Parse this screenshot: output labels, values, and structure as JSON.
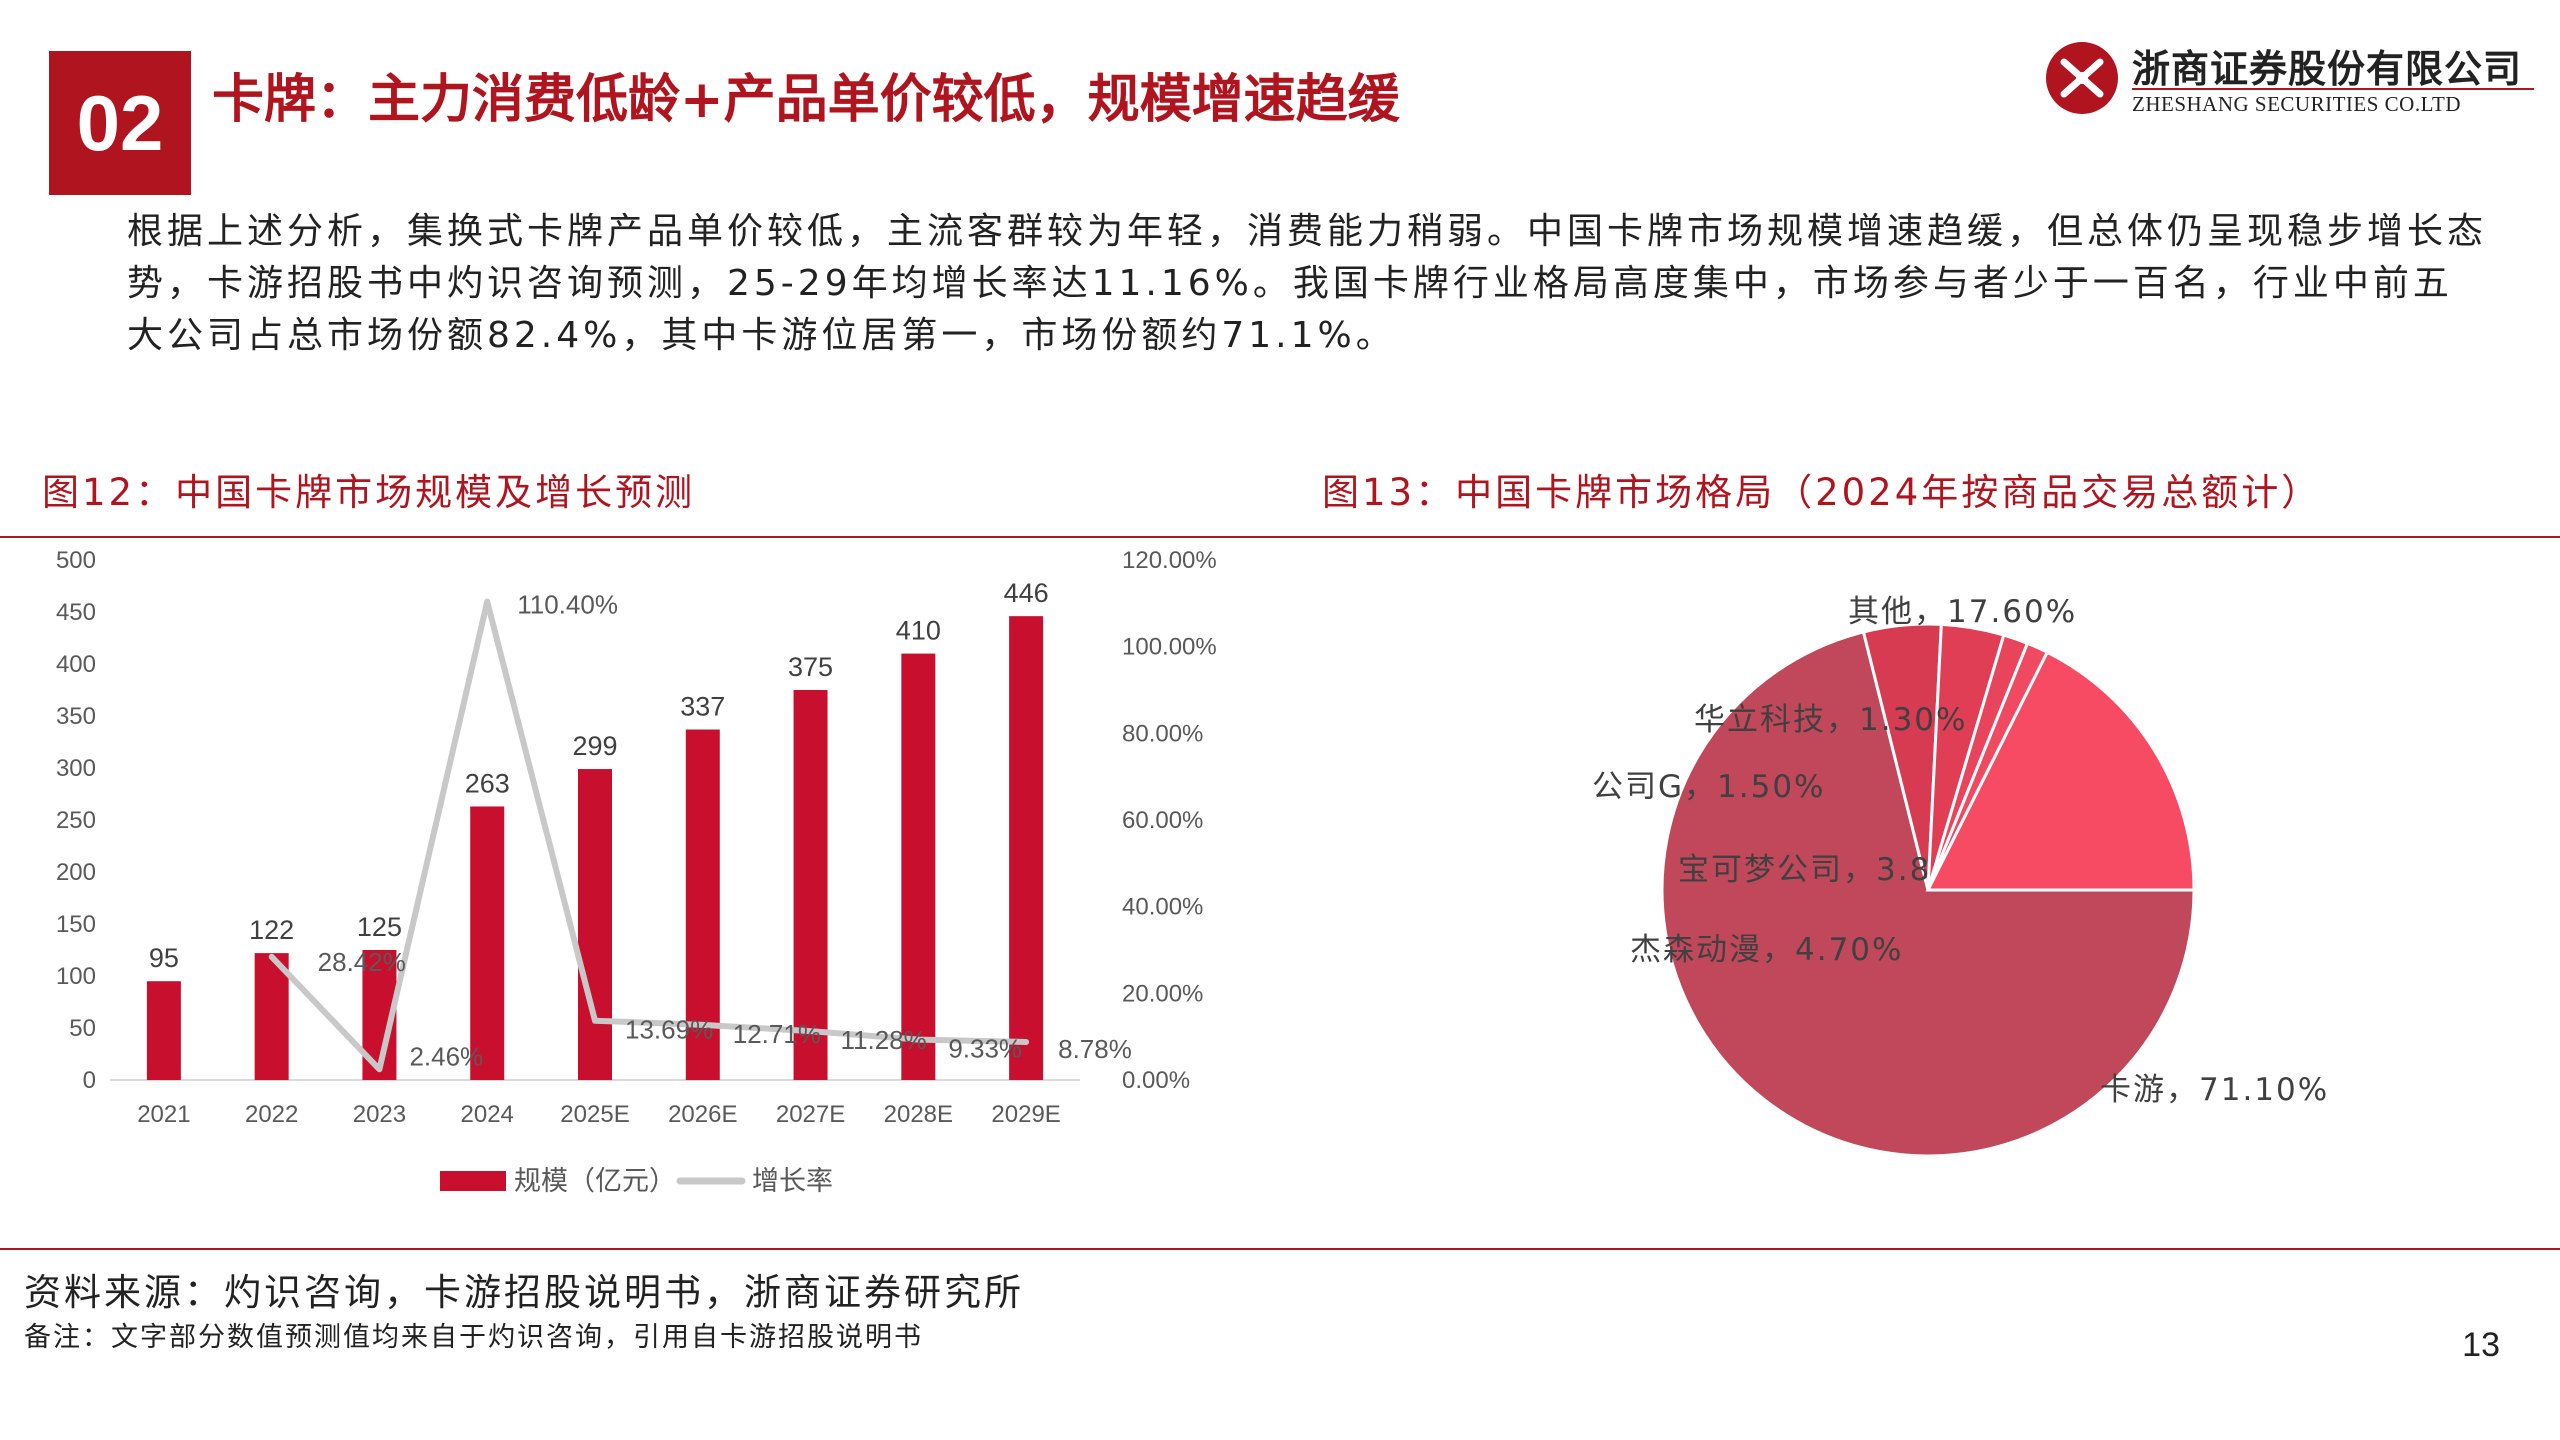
{
  "header": {
    "section_number": "02",
    "title": "卡牌：主力消费低龄+产品单价较低，规模增速趋缓",
    "logo_cn": "浙商证券股份有限公司",
    "logo_en": "ZHESHANG SECURITIES CO.LTD"
  },
  "intro_text": "根据上述分析，集换式卡牌产品单价较低，主流客群较为年轻，消费能力稍弱。中国卡牌市场规模增速趋缓，但总体仍呈现稳步增长态势，卡游招股书中灼识咨询预测，25-29年均增长率达11.16%。我国卡牌行业格局高度集中，市场参与者少于一百名，行业中前五大公司占总市场份额82.4%，其中卡游位居第一，市场份额约71.1%。",
  "figures": {
    "left_title": "图12：中国卡牌市场规模及增长预测",
    "right_title": "图13：中国卡牌市场格局（2024年按商品交易总额计）"
  },
  "chart_data": [
    {
      "type": "bar",
      "title": "图12：中国卡牌市场规模及增长预测",
      "categories": [
        "2021",
        "2022",
        "2023",
        "2024",
        "2025E",
        "2026E",
        "2027E",
        "2028E",
        "2029E"
      ],
      "series": [
        {
          "name": "规模（亿元）",
          "type": "bar",
          "axis": "left",
          "color": "#c8102e",
          "values": [
            95,
            122,
            125,
            263,
            299,
            337,
            375,
            410,
            446
          ],
          "labels": [
            "95",
            "122",
            "125",
            "263",
            "299",
            "337",
            "375",
            "410",
            "446"
          ]
        },
        {
          "name": "增长率",
          "type": "line",
          "axis": "right",
          "color": "#c8c8c8",
          "values": [
            null,
            28.42,
            2.46,
            110.4,
            13.69,
            12.71,
            11.28,
            9.33,
            8.78
          ],
          "labels": [
            "",
            "28.42%",
            "2.46%",
            "110.40%",
            "13.69%",
            "12.71%",
            "11.28%",
            "9.33%",
            "8.78%"
          ]
        }
      ],
      "y_left": {
        "min": 0,
        "max": 500,
        "step": 50,
        "ticks": [
          "0",
          "50",
          "100",
          "150",
          "200",
          "250",
          "300",
          "350",
          "400",
          "450",
          "500"
        ]
      },
      "y_right": {
        "min": 0,
        "max": 120,
        "step": 20,
        "ticks": [
          "0.00%",
          "20.00%",
          "40.00%",
          "60.00%",
          "80.00%",
          "100.00%",
          "120.00%"
        ]
      },
      "grid": false,
      "legend_position": "bottom"
    },
    {
      "type": "pie",
      "title": "图13：中国卡牌市场格局（2024年按商品交易总额计）",
      "slices": [
        {
          "label": "卡游",
          "value": 71.1,
          "text": "卡游，71.10%",
          "color": "#c0485a"
        },
        {
          "label": "杰森动漫",
          "value": 4.7,
          "text": "杰森动漫，4.70%",
          "color": "#d63b52"
        },
        {
          "label": "宝可梦公司",
          "value": 3.8,
          "text": "宝可梦公司，3.80%",
          "color": "#e03e55"
        },
        {
          "label": "公司G",
          "value": 1.5,
          "text": "公司G，1.50%",
          "color": "#e8455c"
        },
        {
          "label": "华立科技",
          "value": 1.3,
          "text": "华立科技，1.30%",
          "color": "#ef4a61"
        },
        {
          "label": "其他",
          "value": 17.6,
          "text": "其他，17.60%",
          "color": "#f64b63"
        }
      ]
    }
  ],
  "footer": {
    "source": "资料来源：灼识咨询，卡游招股说明书，浙商证券研究所",
    "note": "备注：文字部分数值预测值均来自于灼识咨询，引用自卡游招股说明书",
    "page": "13"
  }
}
